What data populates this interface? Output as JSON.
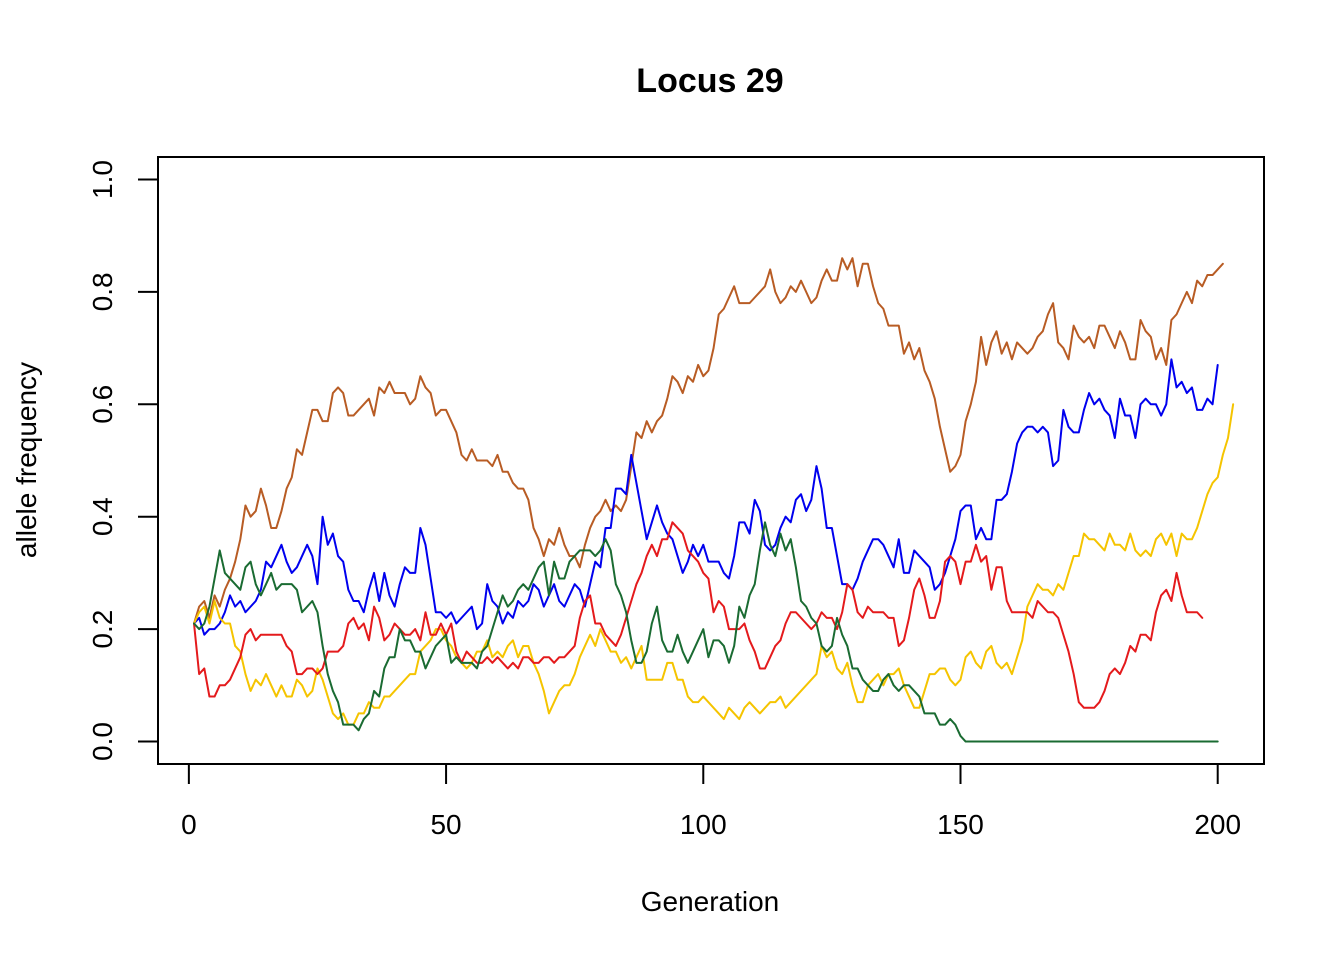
{
  "chart_data": {
    "type": "line",
    "title": "Locus 29",
    "xlabel": "Generation",
    "ylabel": "allele frequency",
    "xlim": [
      -6,
      209
    ],
    "ylim": [
      -0.04,
      1.04
    ],
    "xticks": [
      0,
      50,
      100,
      150,
      200
    ],
    "yticks": [
      0.0,
      0.2,
      0.4,
      0.6,
      0.8,
      1.0
    ],
    "xtick_labels": [
      "0",
      "50",
      "100",
      "150",
      "200"
    ],
    "ytick_labels": [
      "0.0",
      "0.2",
      "0.4",
      "0.6",
      "0.8",
      "1.0"
    ],
    "grid": false,
    "legend": "none",
    "colors": {
      "axes": "#000000",
      "background": "#ffffff"
    },
    "x": {
      "start": 1,
      "end": 200,
      "step": 1
    },
    "series": [
      {
        "color": "#B85C24",
        "values": [
          0.21,
          0.24,
          0.25,
          0.22,
          0.26,
          0.24,
          0.27,
          0.29,
          0.32,
          0.36,
          0.42,
          0.4,
          0.41,
          0.45,
          0.42,
          0.38,
          0.38,
          0.41,
          0.45,
          0.47,
          0.52,
          0.51,
          0.55,
          0.59,
          0.59,
          0.57,
          0.57,
          0.62,
          0.63,
          0.62,
          0.58,
          0.58,
          0.59,
          0.6,
          0.61,
          0.58,
          0.63,
          0.62,
          0.64,
          0.62,
          0.62,
          0.62,
          0.6,
          0.61,
          0.65,
          0.63,
          0.62,
          0.58,
          0.59,
          0.59,
          0.57,
          0.55,
          0.51,
          0.5,
          0.52,
          0.5,
          0.5,
          0.5,
          0.49,
          0.51,
          0.48,
          0.48,
          0.46,
          0.45,
          0.45,
          0.43,
          0.38,
          0.36,
          0.33,
          0.36,
          0.35,
          0.38,
          0.35,
          0.33,
          0.33,
          0.31,
          0.35,
          0.38,
          0.4,
          0.41,
          0.43,
          0.41,
          0.42,
          0.41,
          0.43,
          0.49,
          0.55,
          0.54,
          0.57,
          0.55,
          0.57,
          0.58,
          0.61,
          0.65,
          0.64,
          0.62,
          0.65,
          0.64,
          0.67,
          0.65,
          0.66,
          0.7,
          0.76,
          0.77,
          0.79,
          0.81,
          0.78,
          0.78,
          0.78,
          0.79,
          0.8,
          0.81,
          0.84,
          0.8,
          0.78,
          0.79,
          0.81,
          0.8,
          0.82,
          0.8,
          0.78,
          0.79,
          0.82,
          0.84,
          0.82,
          0.82,
          0.86,
          0.84,
          0.86,
          0.81,
          0.85,
          0.85,
          0.81,
          0.78,
          0.77,
          0.74,
          0.74,
          0.74,
          0.69,
          0.71,
          0.68,
          0.7,
          0.66,
          0.64,
          0.61,
          0.56,
          0.52,
          0.48,
          0.49,
          0.51,
          0.57,
          0.6,
          0.64,
          0.72,
          0.67,
          0.71,
          0.73,
          0.69,
          0.71,
          0.68,
          0.71,
          0.7,
          0.69,
          0.7,
          0.72,
          0.73,
          0.76,
          0.78,
          0.71,
          0.7,
          0.68,
          0.74,
          0.72,
          0.71,
          0.72,
          0.7,
          0.74,
          0.74,
          0.72,
          0.7,
          0.73,
          0.71,
          0.68,
          0.68,
          0.75,
          0.73,
          0.72,
          0.68,
          0.7,
          0.67,
          0.75,
          0.76,
          0.78,
          0.8,
          0.78,
          0.82,
          0.81,
          0.83,
          0.83,
          0.84,
          0.85
        ]
      },
      {
        "color": "#0000EE",
        "values": [
          0.21,
          0.22,
          0.19,
          0.2,
          0.2,
          0.21,
          0.23,
          0.26,
          0.24,
          0.25,
          0.23,
          0.24,
          0.25,
          0.27,
          0.32,
          0.31,
          0.33,
          0.35,
          0.32,
          0.3,
          0.31,
          0.33,
          0.35,
          0.33,
          0.28,
          0.4,
          0.35,
          0.37,
          0.33,
          0.32,
          0.27,
          0.25,
          0.25,
          0.23,
          0.27,
          0.3,
          0.25,
          0.3,
          0.26,
          0.24,
          0.28,
          0.31,
          0.3,
          0.3,
          0.38,
          0.35,
          0.29,
          0.23,
          0.23,
          0.22,
          0.23,
          0.21,
          0.22,
          0.23,
          0.24,
          0.2,
          0.21,
          0.28,
          0.25,
          0.24,
          0.21,
          0.23,
          0.22,
          0.25,
          0.24,
          0.25,
          0.28,
          0.27,
          0.24,
          0.26,
          0.28,
          0.25,
          0.24,
          0.26,
          0.28,
          0.27,
          0.24,
          0.28,
          0.32,
          0.31,
          0.38,
          0.38,
          0.45,
          0.45,
          0.44,
          0.51,
          0.46,
          0.41,
          0.36,
          0.39,
          0.42,
          0.39,
          0.37,
          0.36,
          0.33,
          0.3,
          0.32,
          0.35,
          0.33,
          0.35,
          0.32,
          0.32,
          0.32,
          0.3,
          0.29,
          0.33,
          0.39,
          0.39,
          0.37,
          0.43,
          0.41,
          0.35,
          0.34,
          0.35,
          0.38,
          0.4,
          0.39,
          0.43,
          0.44,
          0.41,
          0.43,
          0.49,
          0.45,
          0.38,
          0.38,
          0.33,
          0.28,
          0.28,
          0.27,
          0.29,
          0.32,
          0.34,
          0.36,
          0.36,
          0.35,
          0.33,
          0.31,
          0.36,
          0.3,
          0.3,
          0.34,
          0.33,
          0.32,
          0.31,
          0.27,
          0.28,
          0.3,
          0.33,
          0.36,
          0.41,
          0.42,
          0.42,
          0.36,
          0.38,
          0.36,
          0.36,
          0.43,
          0.43,
          0.44,
          0.48,
          0.53,
          0.55,
          0.56,
          0.56,
          0.55,
          0.56,
          0.55,
          0.49,
          0.5,
          0.59,
          0.56,
          0.55,
          0.55,
          0.59,
          0.62,
          0.6,
          0.61,
          0.59,
          0.58,
          0.54,
          0.61,
          0.58,
          0.58,
          0.54,
          0.6,
          0.61,
          0.6,
          0.6,
          0.58,
          0.6,
          0.68,
          0.63,
          0.64,
          0.62,
          0.63,
          0.59,
          0.59,
          0.61,
          0.6,
          0.67
        ]
      },
      {
        "color": "#F5C400",
        "values": [
          0.21,
          0.23,
          0.24,
          0.21,
          0.25,
          0.22,
          0.21,
          0.21,
          0.17,
          0.16,
          0.12,
          0.09,
          0.11,
          0.1,
          0.12,
          0.1,
          0.08,
          0.1,
          0.08,
          0.08,
          0.11,
          0.1,
          0.08,
          0.09,
          0.13,
          0.11,
          0.08,
          0.05,
          0.04,
          0.05,
          0.03,
          0.03,
          0.05,
          0.05,
          0.07,
          0.06,
          0.06,
          0.08,
          0.08,
          0.09,
          0.1,
          0.11,
          0.12,
          0.12,
          0.16,
          0.17,
          0.18,
          0.2,
          0.2,
          0.18,
          0.17,
          0.15,
          0.14,
          0.13,
          0.14,
          0.16,
          0.16,
          0.18,
          0.15,
          0.16,
          0.15,
          0.17,
          0.18,
          0.15,
          0.17,
          0.17,
          0.14,
          0.12,
          0.09,
          0.05,
          0.07,
          0.09,
          0.1,
          0.1,
          0.12,
          0.15,
          0.17,
          0.19,
          0.17,
          0.2,
          0.18,
          0.16,
          0.16,
          0.14,
          0.15,
          0.13,
          0.15,
          0.17,
          0.11,
          0.11,
          0.11,
          0.11,
          0.14,
          0.14,
          0.11,
          0.11,
          0.08,
          0.07,
          0.07,
          0.08,
          0.07,
          0.06,
          0.05,
          0.04,
          0.06,
          0.05,
          0.04,
          0.06,
          0.07,
          0.06,
          0.05,
          0.06,
          0.07,
          0.07,
          0.08,
          0.06,
          0.07,
          0.08,
          0.09,
          0.1,
          0.11,
          0.12,
          0.17,
          0.15,
          0.16,
          0.13,
          0.12,
          0.14,
          0.1,
          0.07,
          0.07,
          0.1,
          0.11,
          0.12,
          0.1,
          0.12,
          0.12,
          0.13,
          0.1,
          0.08,
          0.06,
          0.06,
          0.09,
          0.12,
          0.12,
          0.13,
          0.13,
          0.11,
          0.1,
          0.11,
          0.15,
          0.16,
          0.14,
          0.13,
          0.16,
          0.17,
          0.14,
          0.13,
          0.14,
          0.12,
          0.15,
          0.18,
          0.24,
          0.26,
          0.28,
          0.27,
          0.27,
          0.26,
          0.28,
          0.27,
          0.3,
          0.33,
          0.33,
          0.37,
          0.36,
          0.36,
          0.35,
          0.34,
          0.37,
          0.35,
          0.35,
          0.34,
          0.37,
          0.34,
          0.33,
          0.34,
          0.33,
          0.36,
          0.37,
          0.35,
          0.37,
          0.33,
          0.37,
          0.36,
          0.36,
          0.38,
          0.41,
          0.44,
          0.46,
          0.47,
          0.51,
          0.54,
          0.6
        ]
      },
      {
        "color": "#E41A1C",
        "values": [
          0.21,
          0.12,
          0.13,
          0.08,
          0.08,
          0.1,
          0.1,
          0.11,
          0.13,
          0.15,
          0.19,
          0.2,
          0.18,
          0.19,
          0.19,
          0.19,
          0.19,
          0.19,
          0.17,
          0.16,
          0.12,
          0.12,
          0.13,
          0.13,
          0.12,
          0.13,
          0.16,
          0.16,
          0.16,
          0.17,
          0.21,
          0.22,
          0.2,
          0.21,
          0.18,
          0.24,
          0.22,
          0.18,
          0.19,
          0.21,
          0.2,
          0.19,
          0.19,
          0.2,
          0.18,
          0.23,
          0.19,
          0.19,
          0.21,
          0.19,
          0.21,
          0.16,
          0.14,
          0.16,
          0.15,
          0.14,
          0.14,
          0.15,
          0.14,
          0.15,
          0.14,
          0.13,
          0.14,
          0.13,
          0.15,
          0.15,
          0.14,
          0.14,
          0.15,
          0.15,
          0.14,
          0.15,
          0.15,
          0.16,
          0.17,
          0.22,
          0.25,
          0.26,
          0.21,
          0.21,
          0.19,
          0.18,
          0.17,
          0.19,
          0.22,
          0.25,
          0.28,
          0.3,
          0.33,
          0.35,
          0.33,
          0.36,
          0.36,
          0.39,
          0.38,
          0.37,
          0.34,
          0.33,
          0.32,
          0.3,
          0.29,
          0.23,
          0.25,
          0.24,
          0.2,
          0.2,
          0.2,
          0.21,
          0.18,
          0.16,
          0.13,
          0.13,
          0.15,
          0.17,
          0.18,
          0.21,
          0.23,
          0.23,
          0.22,
          0.21,
          0.2,
          0.21,
          0.23,
          0.22,
          0.22,
          0.2,
          0.23,
          0.28,
          0.27,
          0.23,
          0.22,
          0.24,
          0.23,
          0.23,
          0.23,
          0.22,
          0.22,
          0.17,
          0.18,
          0.22,
          0.27,
          0.29,
          0.26,
          0.22,
          0.22,
          0.25,
          0.32,
          0.33,
          0.32,
          0.28,
          0.32,
          0.32,
          0.35,
          0.32,
          0.33,
          0.27,
          0.31,
          0.31,
          0.25,
          0.23,
          0.23,
          0.23,
          0.23,
          0.22,
          0.25,
          0.24,
          0.23,
          0.23,
          0.22,
          0.19,
          0.16,
          0.12,
          0.07,
          0.06,
          0.06,
          0.06,
          0.07,
          0.09,
          0.12,
          0.13,
          0.12,
          0.14,
          0.17,
          0.16,
          0.19,
          0.19,
          0.18,
          0.23,
          0.26,
          0.27,
          0.25,
          0.3,
          0.26,
          0.23,
          0.23,
          0.23,
          0.22
        ]
      },
      {
        "color": "#1A6B32",
        "values": [
          0.21,
          0.2,
          0.21,
          0.24,
          0.29,
          0.34,
          0.3,
          0.29,
          0.28,
          0.27,
          0.31,
          0.32,
          0.28,
          0.26,
          0.28,
          0.3,
          0.27,
          0.28,
          0.28,
          0.28,
          0.27,
          0.23,
          0.24,
          0.25,
          0.23,
          0.17,
          0.12,
          0.09,
          0.07,
          0.03,
          0.03,
          0.03,
          0.02,
          0.04,
          0.05,
          0.09,
          0.08,
          0.13,
          0.15,
          0.15,
          0.2,
          0.18,
          0.18,
          0.16,
          0.16,
          0.13,
          0.15,
          0.17,
          0.18,
          0.19,
          0.14,
          0.15,
          0.14,
          0.14,
          0.14,
          0.13,
          0.16,
          0.17,
          0.2,
          0.23,
          0.26,
          0.24,
          0.25,
          0.27,
          0.28,
          0.27,
          0.29,
          0.31,
          0.32,
          0.26,
          0.32,
          0.29,
          0.29,
          0.32,
          0.33,
          0.34,
          0.34,
          0.34,
          0.33,
          0.34,
          0.36,
          0.34,
          0.28,
          0.26,
          0.23,
          0.18,
          0.14,
          0.14,
          0.16,
          0.21,
          0.24,
          0.18,
          0.16,
          0.16,
          0.19,
          0.16,
          0.14,
          0.16,
          0.18,
          0.2,
          0.15,
          0.18,
          0.18,
          0.17,
          0.14,
          0.17,
          0.24,
          0.22,
          0.26,
          0.28,
          0.34,
          0.39,
          0.35,
          0.33,
          0.37,
          0.34,
          0.36,
          0.31,
          0.25,
          0.24,
          0.22,
          0.21,
          0.17,
          0.16,
          0.17,
          0.22,
          0.19,
          0.17,
          0.13,
          0.13,
          0.11,
          0.1,
          0.09,
          0.09,
          0.11,
          0.12,
          0.1,
          0.09,
          0.1,
          0.1,
          0.09,
          0.08,
          0.05,
          0.05,
          0.05,
          0.03,
          0.03,
          0.04,
          0.03,
          0.01,
          0.0,
          0.0,
          0.0,
          0.0,
          0.0,
          0.0,
          0.0,
          0.0,
          0.0,
          0.0,
          0.0,
          0.0,
          0.0,
          0.0,
          0.0,
          0.0,
          0.0,
          0.0,
          0.0,
          0.0,
          0.0,
          0.0,
          0.0,
          0.0,
          0.0,
          0.0,
          0.0,
          0.0,
          0.0,
          0.0,
          0.0,
          0.0,
          0.0,
          0.0,
          0.0,
          0.0,
          0.0,
          0.0,
          0.0,
          0.0,
          0.0,
          0.0,
          0.0,
          0.0,
          0.0,
          0.0,
          0.0,
          0.0,
          0.0,
          0.0
        ]
      }
    ]
  }
}
